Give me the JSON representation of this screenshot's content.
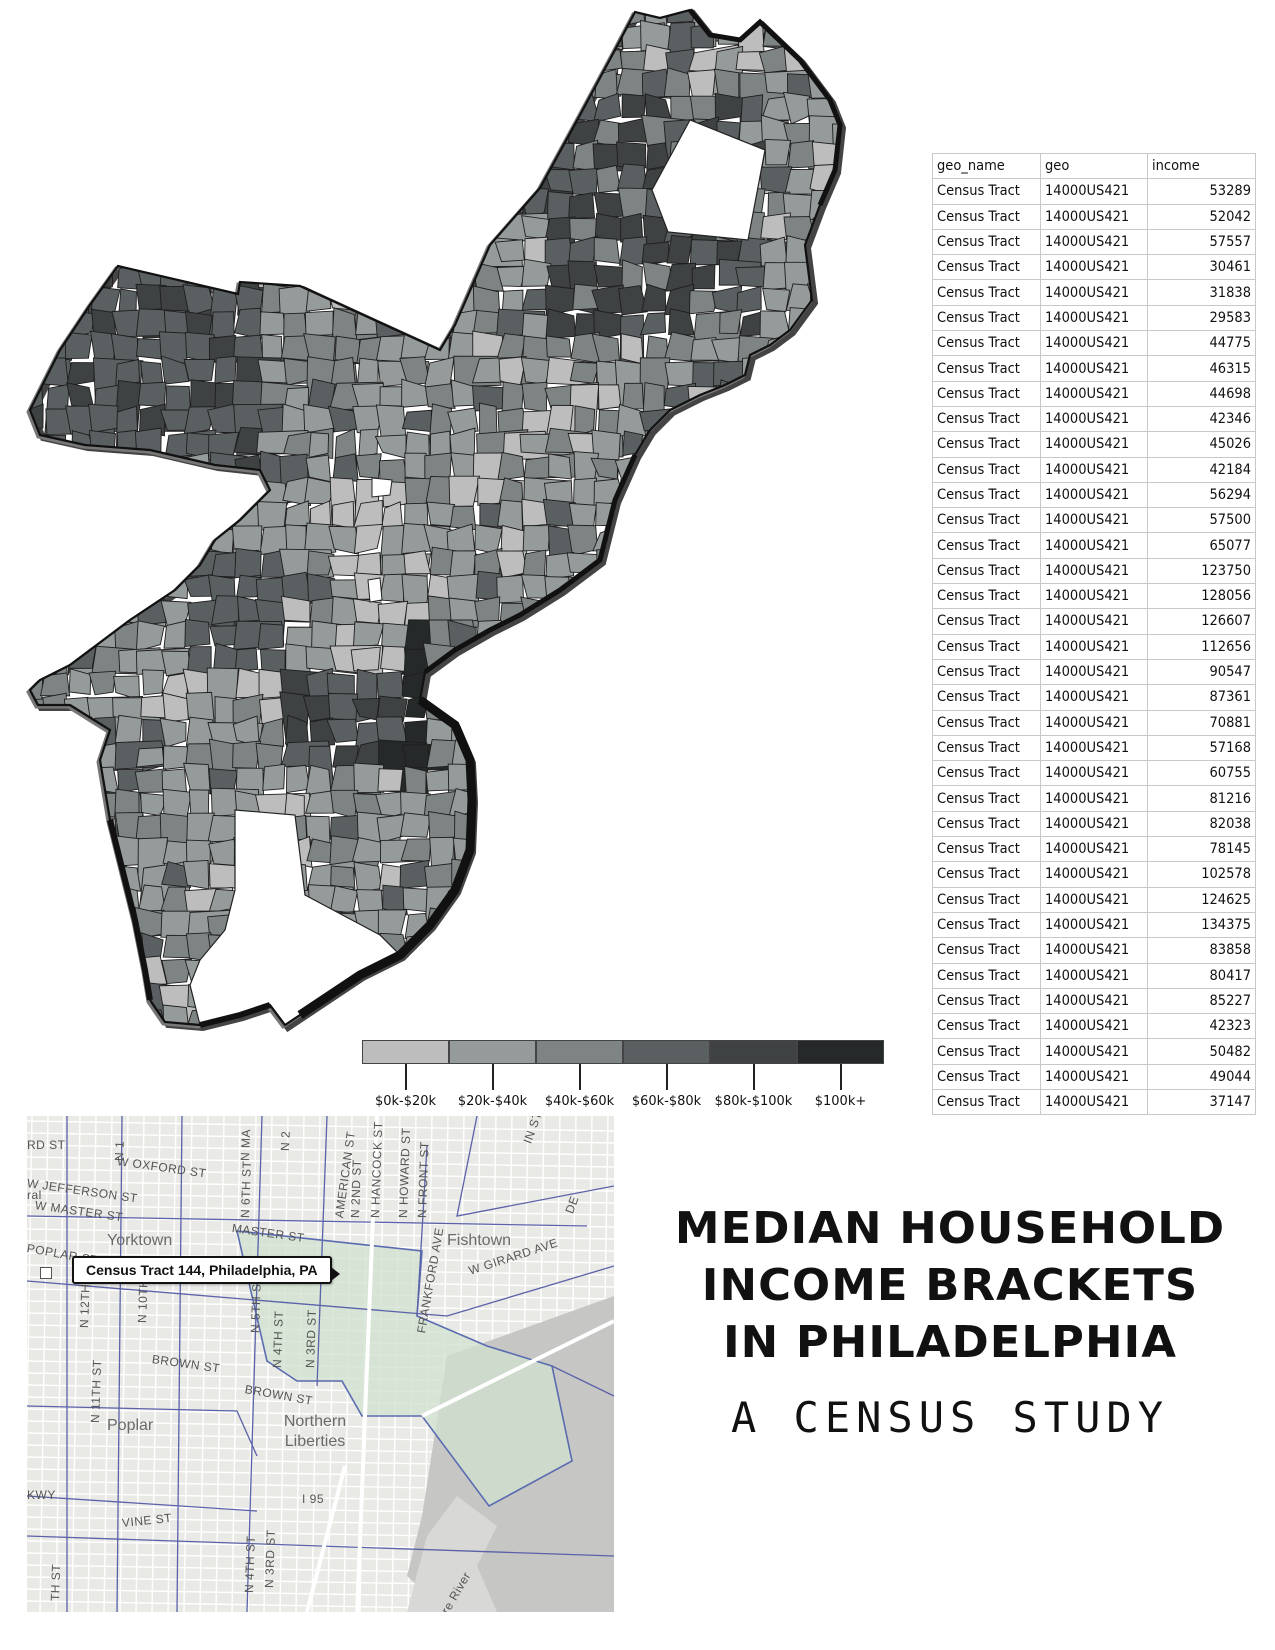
{
  "title": {
    "lines": [
      "MEDIAN HOUSEHOLD",
      "INCOME BRACKETS",
      "IN PHILADELPHIA"
    ],
    "subtitle": "A CENSUS STUDY"
  },
  "legend": {
    "brackets": [
      {
        "label": "$0k-$20k",
        "color": "#bdbdbd"
      },
      {
        "label": "$20k-$40k",
        "color": "#959a9a"
      },
      {
        "label": "$40k-$60k",
        "color": "#7e8484"
      },
      {
        "label": "$60k-$80k",
        "color": "#5a5f62"
      },
      {
        "label": "$80k-$100k",
        "color": "#3e4242"
      },
      {
        "label": "$100k+",
        "color": "#262929"
      }
    ]
  },
  "table": {
    "headers": [
      "geo_name",
      "geo",
      "income"
    ],
    "rows": [
      [
        "Census Tract",
        "14000US421",
        "53289"
      ],
      [
        "Census Tract",
        "14000US421",
        "52042"
      ],
      [
        "Census Tract",
        "14000US421",
        "57557"
      ],
      [
        "Census Tract",
        "14000US421",
        "30461"
      ],
      [
        "Census Tract",
        "14000US421",
        "31838"
      ],
      [
        "Census Tract",
        "14000US421",
        "29583"
      ],
      [
        "Census Tract",
        "14000US421",
        "44775"
      ],
      [
        "Census Tract",
        "14000US421",
        "46315"
      ],
      [
        "Census Tract",
        "14000US421",
        "44698"
      ],
      [
        "Census Tract",
        "14000US421",
        "42346"
      ],
      [
        "Census Tract",
        "14000US421",
        "45026"
      ],
      [
        "Census Tract",
        "14000US421",
        "42184"
      ],
      [
        "Census Tract",
        "14000US421",
        "56294"
      ],
      [
        "Census Tract",
        "14000US421",
        "57500"
      ],
      [
        "Census Tract",
        "14000US421",
        "65077"
      ],
      [
        "Census Tract",
        "14000US421",
        "123750"
      ],
      [
        "Census Tract",
        "14000US421",
        "128056"
      ],
      [
        "Census Tract",
        "14000US421",
        "126607"
      ],
      [
        "Census Tract",
        "14000US421",
        "112656"
      ],
      [
        "Census Tract",
        "14000US421",
        "90547"
      ],
      [
        "Census Tract",
        "14000US421",
        "87361"
      ],
      [
        "Census Tract",
        "14000US421",
        "70881"
      ],
      [
        "Census Tract",
        "14000US421",
        "57168"
      ],
      [
        "Census Tract",
        "14000US421",
        "60755"
      ],
      [
        "Census Tract",
        "14000US421",
        "81216"
      ],
      [
        "Census Tract",
        "14000US421",
        "82038"
      ],
      [
        "Census Tract",
        "14000US421",
        "78145"
      ],
      [
        "Census Tract",
        "14000US421",
        "102578"
      ],
      [
        "Census Tract",
        "14000US421",
        "124625"
      ],
      [
        "Census Tract",
        "14000US421",
        "134375"
      ],
      [
        "Census Tract",
        "14000US421",
        "83858"
      ],
      [
        "Census Tract",
        "14000US421",
        "80417"
      ],
      [
        "Census Tract",
        "14000US421",
        "85227"
      ],
      [
        "Census Tract",
        "14000US421",
        "42323"
      ],
      [
        "Census Tract",
        "14000US421",
        "50482"
      ],
      [
        "Census Tract",
        "14000US421",
        "49044"
      ],
      [
        "Census Tract",
        "14000US421",
        "37147"
      ]
    ]
  },
  "street_map": {
    "tooltip": "Census Tract 144, Philadelphia, PA",
    "places": [
      "Yorktown",
      "Fishtown",
      "Poplar",
      "Northern Liberties"
    ],
    "streets": [
      "W OXFORD ST",
      "W JEFFERSON ST",
      "W MASTER ST",
      "MASTER ST",
      "POPLAR ST",
      "BROWN ST",
      "BROWN ST",
      "VINE ST",
      "W GIRARD AVE",
      "FRANKFORD AVE",
      "N 2ND ST",
      "N HANCOCK ST",
      "N HOWARD ST",
      "N FRONT ST",
      "AMERICAN ST",
      "N 6TH ST",
      "N 5TH ST",
      "N 4TH ST",
      "N 3RD ST",
      "N 10TH ST",
      "N 12TH ST",
      "N 11TH ST",
      "N 4TH ST",
      "N 3RD ST",
      "I 95",
      "DE",
      "KWY",
      "RD ST",
      "TH ST",
      "ral",
      "N 1",
      "N MA",
      "N 2",
      "IN ST",
      "are River"
    ]
  }
}
